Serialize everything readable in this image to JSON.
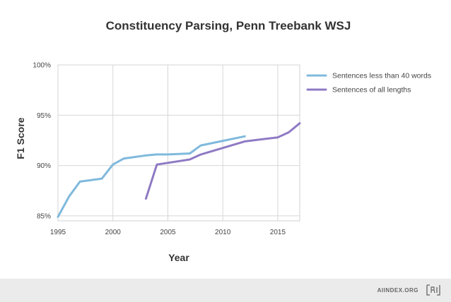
{
  "footer": {
    "site": "AIINDEX.ORG"
  },
  "chart_data": {
    "type": "line",
    "title": "Constituency Parsing, Penn Treebank WSJ",
    "xlabel": "Year",
    "ylabel": "F1 Score",
    "xlim": [
      1995,
      2017
    ],
    "ylim": [
      84.5,
      100
    ],
    "x_ticks": [
      1995,
      2000,
      2005,
      2010,
      2015
    ],
    "x_tick_labels": [
      "1995",
      "2000",
      "2005",
      "2010",
      "2015"
    ],
    "y_ticks": [
      85,
      90,
      95,
      100
    ],
    "y_tick_labels": [
      "85%",
      "90%",
      "95%",
      "100%"
    ],
    "grid": true,
    "legend_position": "right",
    "series": [
      {
        "name": "Sentences less than 40 words",
        "color": "#7fb9dc",
        "points": [
          [
            1995,
            84.9
          ],
          [
            1996,
            86.9
          ],
          [
            1997,
            88.4
          ],
          [
            1999,
            88.7
          ],
          [
            2000,
            90.1
          ],
          [
            2001,
            90.7
          ],
          [
            2003,
            91.0
          ],
          [
            2004,
            91.1
          ],
          [
            2005,
            91.1
          ],
          [
            2007,
            91.2
          ],
          [
            2008,
            92.0
          ],
          [
            2012,
            92.9
          ]
        ]
      },
      {
        "name": "Sentences of all lengths",
        "color": "#8e7ac4",
        "points": [
          [
            2003,
            86.7
          ],
          [
            2004,
            90.1
          ],
          [
            2007,
            90.6
          ],
          [
            2008,
            91.1
          ],
          [
            2012,
            92.4
          ],
          [
            2015,
            92.8
          ],
          [
            2016,
            93.3
          ],
          [
            2017,
            94.2
          ]
        ]
      }
    ]
  }
}
